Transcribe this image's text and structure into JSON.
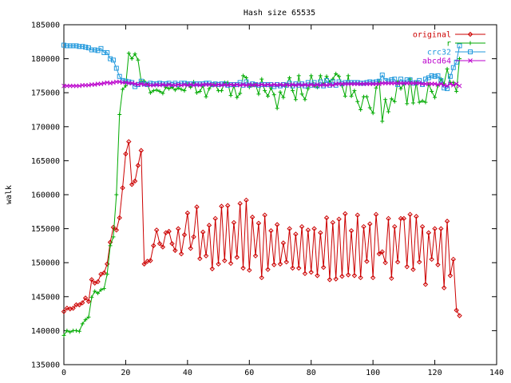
{
  "chart_data": {
    "type": "line",
    "title": "Hash size 65535",
    "xlabel": "",
    "ylabel": "walk",
    "xlim": [
      0,
      140
    ],
    "ylim": [
      135000,
      185000
    ],
    "xticks": [
      0,
      20,
      40,
      60,
      80,
      100,
      120,
      140
    ],
    "yticks": [
      135000,
      140000,
      145000,
      150000,
      155000,
      160000,
      165000,
      170000,
      175000,
      180000,
      185000
    ],
    "grid": false,
    "legend_position": "top-right",
    "series": [
      {
        "name": "original",
        "color": "#cc0000",
        "marker": "diamond",
        "values": [
          142800,
          143300,
          143200,
          143300,
          143800,
          143800,
          144100,
          144800,
          144300,
          147500,
          147000,
          147200,
          148300,
          148500,
          149800,
          153000,
          155200,
          154800,
          156600,
          161000,
          166000,
          167800,
          161500,
          162000,
          164300,
          166500,
          149800,
          150200,
          150300,
          152500,
          154800,
          152800,
          152300,
          154400,
          154600,
          152800,
          151800,
          155000,
          151300,
          154100,
          157300,
          152100,
          153800,
          158200,
          150600,
          154500,
          151000,
          155500,
          149100,
          156500,
          149800,
          158300,
          150300,
          158400,
          149900,
          155900,
          150800,
          158700,
          149200,
          159200,
          148900,
          156700,
          151000,
          155800,
          147800,
          157000,
          149000,
          154700,
          149700,
          155600,
          149800,
          152900,
          150100,
          155000,
          149200,
          154200,
          149200,
          155300,
          148400,
          154800,
          148600,
          155000,
          148100,
          154400,
          149300,
          156600,
          147500,
          155900,
          147600,
          156400,
          148000,
          157200,
          148200,
          154700,
          148100,
          157000,
          147800,
          155300,
          150200,
          155700,
          147800,
          157100,
          151300,
          151600,
          150000,
          156500,
          147700,
          155300,
          150100,
          156500,
          156500,
          149400,
          157100,
          149000,
          156800,
          150100,
          155300,
          146800,
          154400,
          150500,
          155000,
          149700,
          155000,
          146300,
          156100,
          148100,
          150500,
          143000,
          142200
        ]
      },
      {
        "name": "r",
        "color": "#00aa00",
        "marker": "plus",
        "values": [
          139300,
          140000,
          139800,
          140000,
          140000,
          139900,
          141000,
          141600,
          142000,
          144900,
          145800,
          145500,
          146000,
          146200,
          148300,
          152500,
          153800,
          160000,
          171800,
          175500,
          176000,
          180800,
          180000,
          180700,
          179800,
          176700,
          176700,
          176300,
          175000,
          175300,
          175400,
          175200,
          174900,
          175800,
          175600,
          175800,
          175400,
          175700,
          175500,
          175300,
          176300,
          175800,
          176600,
          175000,
          175200,
          176000,
          174400,
          175600,
          176100,
          176200,
          175300,
          175300,
          176500,
          176500,
          174600,
          176000,
          174300,
          174900,
          177500,
          177200,
          175800,
          176100,
          176200,
          174800,
          177000,
          175300,
          174500,
          175700,
          174700,
          172700,
          175100,
          174300,
          176200,
          177200,
          175300,
          174000,
          177500,
          174800,
          174000,
          175600,
          177500,
          176000,
          175800,
          177500,
          176200,
          177400,
          176600,
          177000,
          177800,
          177400,
          176000,
          174500,
          177500,
          174500,
          175300,
          173700,
          172500,
          174400,
          174400,
          172800,
          172000,
          175700,
          176700,
          170800,
          174000,
          172200,
          174100,
          173700,
          176600,
          175600,
          176300,
          173400,
          177000,
          173500,
          176500,
          173600,
          173800,
          173600,
          176300,
          175200,
          174300,
          176000,
          177000,
          176300,
          178500,
          176500,
          176500,
          175200,
          180000
        ]
      },
      {
        "name": "crc32",
        "color": "#2299dd",
        "marker": "square",
        "values": [
          182000,
          181900,
          181900,
          181900,
          181900,
          181800,
          181800,
          181700,
          181600,
          181300,
          181300,
          181200,
          181500,
          180900,
          180900,
          180000,
          179800,
          178600,
          177400,
          176800,
          176700,
          176600,
          176500,
          175900,
          176200,
          176700,
          176300,
          176200,
          176400,
          176300,
          176300,
          176400,
          176300,
          176300,
          176400,
          176200,
          176400,
          176200,
          176400,
          176400,
          176300,
          176300,
          176300,
          176300,
          176300,
          176300,
          176400,
          176400,
          176200,
          176300,
          176200,
          176300,
          176300,
          176100,
          176200,
          176200,
          176200,
          176500,
          176100,
          176600,
          176100,
          176300,
          176200,
          176100,
          176200,
          176200,
          176200,
          176200,
          175900,
          176200,
          176000,
          176200,
          176100,
          176400,
          176000,
          176300,
          176100,
          176300,
          176000,
          176500,
          176100,
          176500,
          176000,
          176600,
          176000,
          176800,
          176100,
          176600,
          176100,
          176600,
          176300,
          176500,
          176500,
          176500,
          176500,
          176500,
          176400,
          176400,
          176500,
          176600,
          176500,
          176600,
          176700,
          177600,
          176800,
          176700,
          176900,
          177000,
          176200,
          177000,
          176500,
          176900,
          176900,
          176400,
          176500,
          176800,
          176200,
          177000,
          177200,
          177500,
          177400,
          177500,
          176800,
          175700,
          175600,
          177400,
          178700,
          179500,
          181900
        ]
      },
      {
        "name": "abcd64",
        "color": "#bb00cc",
        "marker": "cross",
        "values": [
          176000,
          176000,
          176000,
          176000,
          176000,
          176000,
          176100,
          176100,
          176100,
          176200,
          176200,
          176300,
          176300,
          176400,
          176500,
          176400,
          176500,
          176600,
          176600,
          176500,
          176500,
          176400,
          176400,
          176300,
          176200,
          176300,
          176200,
          176200,
          176100,
          176100,
          176200,
          176100,
          176200,
          176100,
          176200,
          176100,
          176100,
          176200,
          176100,
          176200,
          176100,
          176200,
          176100,
          176200,
          176100,
          176200,
          176200,
          176200,
          176200,
          176100,
          176200,
          176100,
          176200,
          176100,
          176200,
          176100,
          176200,
          176100,
          176200,
          176100,
          176200,
          176100,
          176200,
          176100,
          176200,
          176100,
          176200,
          176100,
          176200,
          176100,
          176200,
          176100,
          176200,
          176100,
          176200,
          176100,
          176200,
          176100,
          176200,
          176100,
          176200,
          176100,
          176200,
          176100,
          176200,
          176100,
          176200,
          176100,
          176300,
          176300,
          176300,
          176300,
          176300,
          176300,
          176300,
          176300,
          176300,
          176300,
          176300,
          176300,
          176300,
          176300,
          176300,
          176400,
          176400,
          176400,
          176400,
          176400,
          176400,
          176400,
          176400,
          176400,
          176400,
          176400,
          176400,
          176400,
          176300,
          176300,
          176300,
          176300,
          176300,
          176200,
          176300,
          176100,
          176000,
          176300,
          176100,
          176300,
          176000
        ]
      }
    ]
  }
}
